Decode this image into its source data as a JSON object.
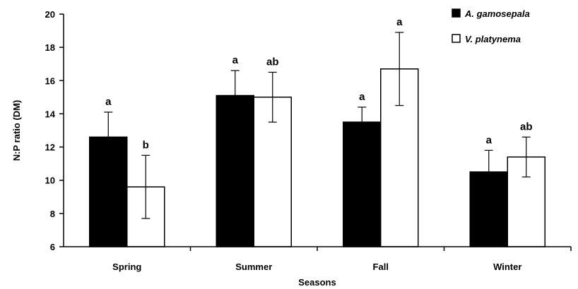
{
  "chart_data": {
    "type": "bar",
    "title": "",
    "xlabel": "Seasons",
    "ylabel": "N:P ratio (DM)",
    "ylim": [
      6,
      20
    ],
    "yticks": [
      6,
      8,
      10,
      12,
      14,
      16,
      18,
      20
    ],
    "categories": [
      "Spring",
      "Summer",
      "Fall",
      "Winter"
    ],
    "grid": false,
    "legend": "top-right",
    "series": [
      {
        "name": "A. gamosepala",
        "color": "#000000",
        "values": [
          12.6,
          15.1,
          13.5,
          10.5
        ],
        "errors": [
          1.5,
          1.5,
          0.9,
          1.3
        ],
        "letters": [
          "a",
          "a",
          "a",
          "a"
        ]
      },
      {
        "name": "V. platynema",
        "color": "#ffffff",
        "values": [
          9.6,
          15.0,
          16.7,
          11.4
        ],
        "errors": [
          1.9,
          1.5,
          2.2,
          1.2
        ],
        "letters": [
          "b",
          "ab",
          "a",
          "ab"
        ]
      }
    ]
  }
}
